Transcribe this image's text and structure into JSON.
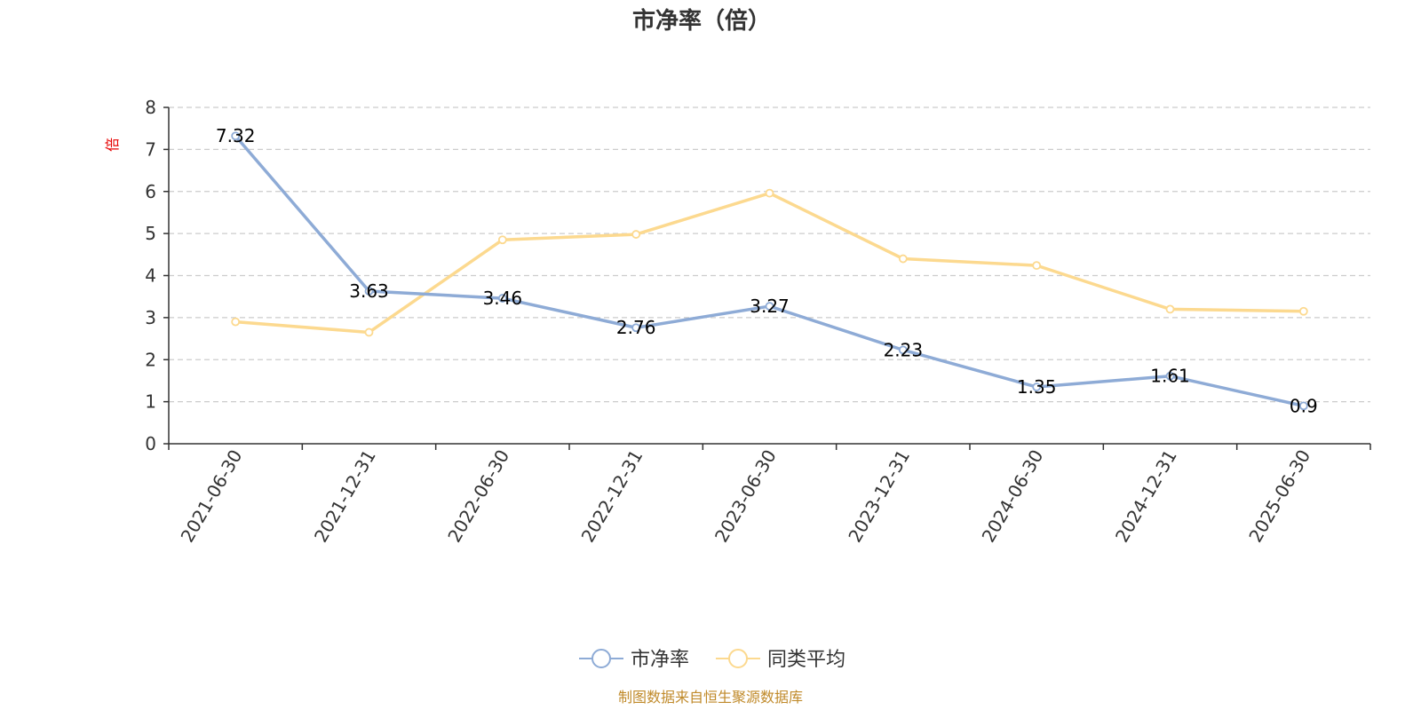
{
  "chart_data": {
    "type": "line",
    "title": "市净率（倍）",
    "ylabel": "倍",
    "categories": [
      "2021-06-30",
      "2021-12-31",
      "2022-06-30",
      "2022-12-31",
      "2023-06-30",
      "2023-12-31",
      "2024-06-30",
      "2024-12-31",
      "2025-06-30"
    ],
    "ylim": [
      0,
      8
    ],
    "yticks": [
      0,
      1,
      2,
      3,
      4,
      5,
      6,
      7,
      8
    ],
    "grid": true,
    "legend_position": "bottom",
    "series": [
      {
        "name": "市净率",
        "color": "#8eabd6",
        "show_labels": true,
        "values": [
          7.32,
          3.63,
          3.46,
          2.76,
          3.27,
          2.23,
          1.35,
          1.61,
          0.9
        ]
      },
      {
        "name": "同类平均",
        "color": "#fcd98f",
        "show_labels": false,
        "values": [
          2.9,
          2.65,
          4.85,
          4.98,
          5.96,
          4.4,
          4.24,
          3.2,
          3.15
        ]
      }
    ]
  },
  "footer": {
    "source": "制图数据来自恒生聚源数据库"
  }
}
